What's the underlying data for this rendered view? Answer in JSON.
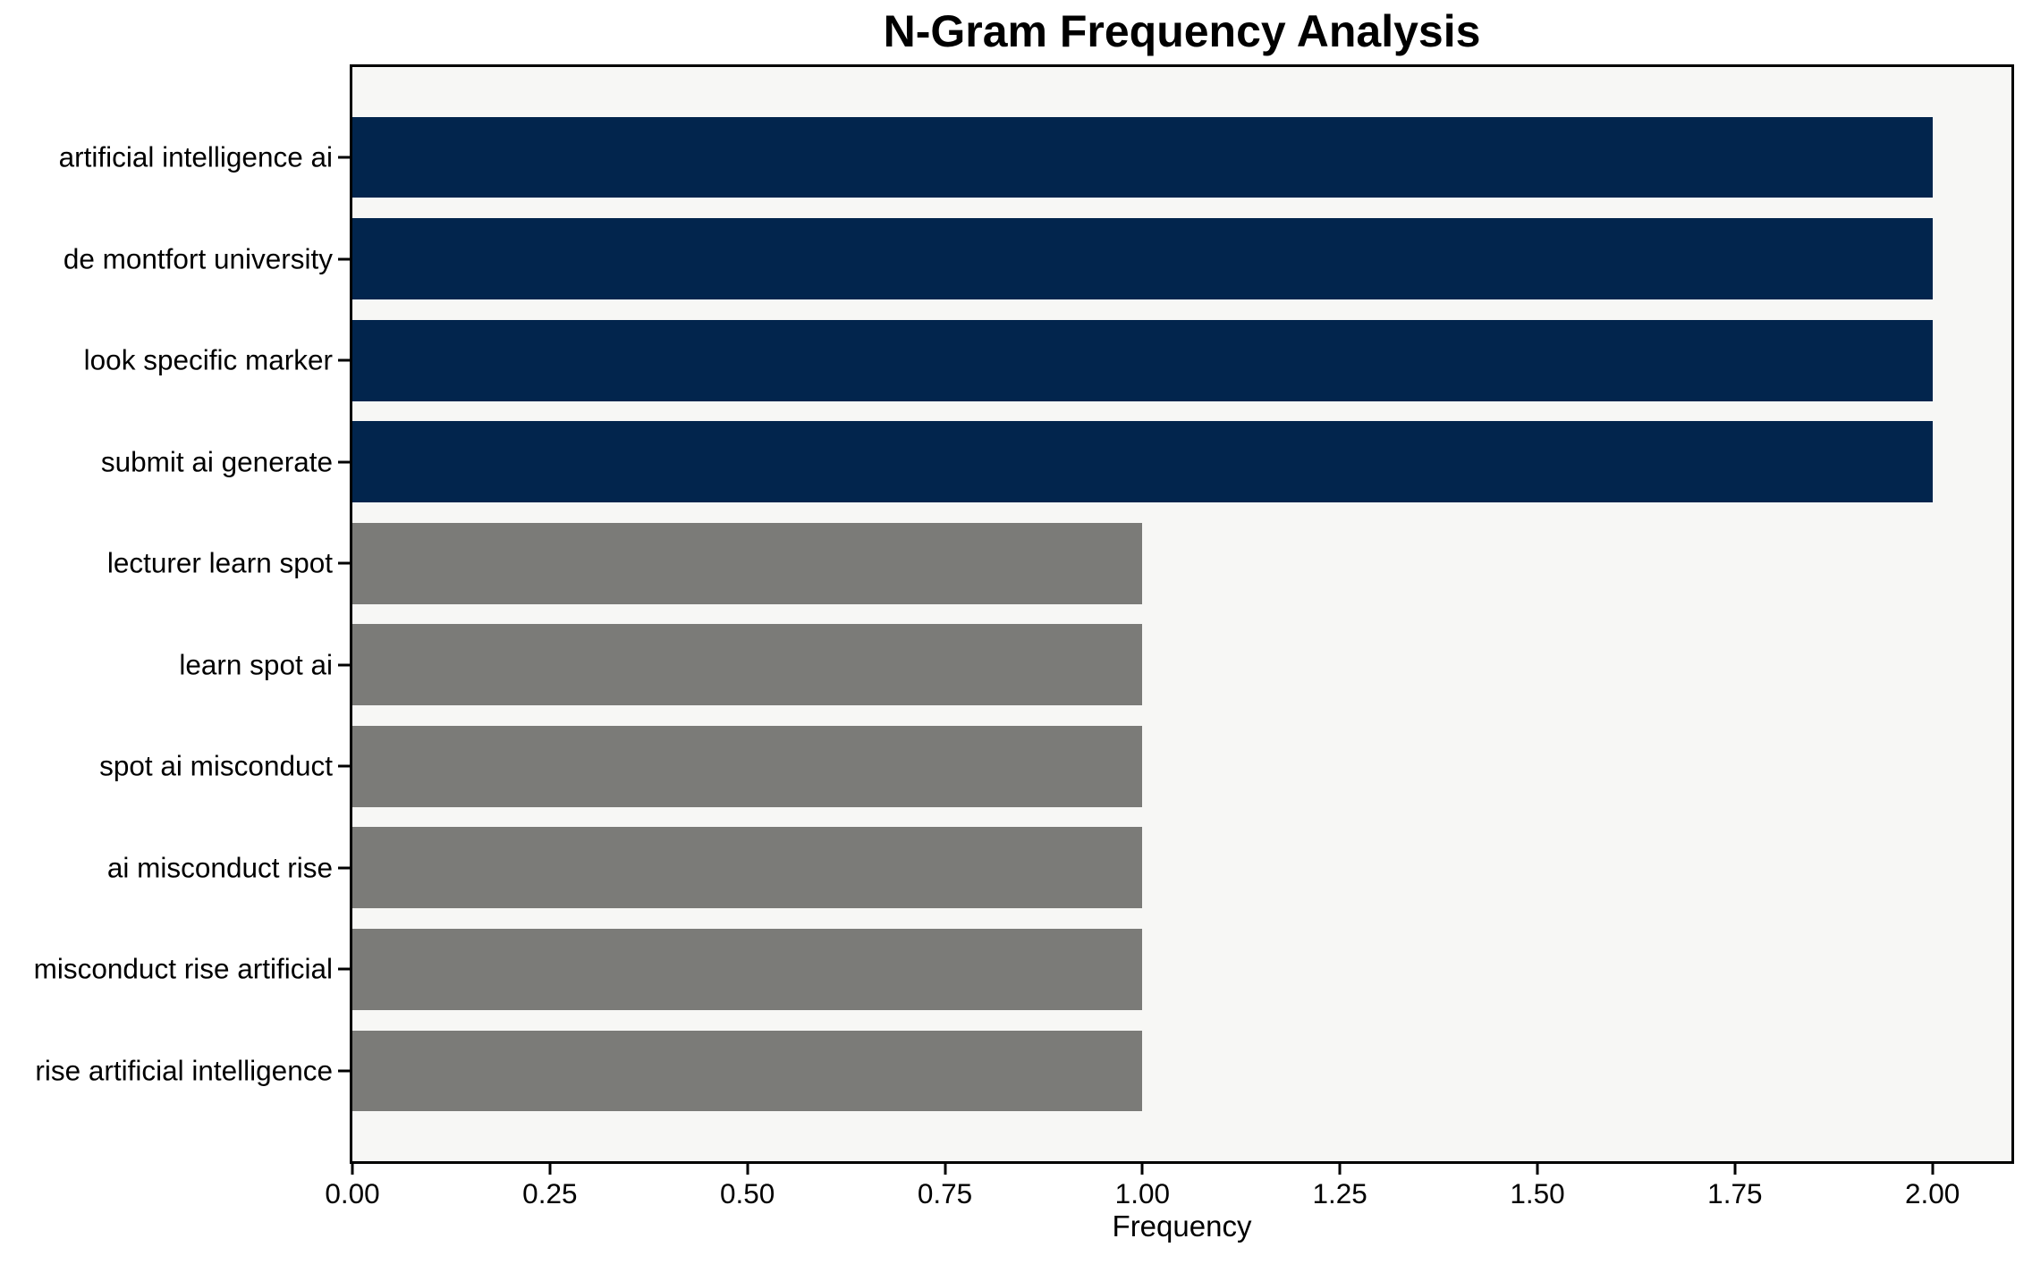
{
  "chart_data": {
    "type": "bar",
    "orientation": "horizontal",
    "title": "N-Gram Frequency Analysis",
    "xlabel": "Frequency",
    "ylabel": "",
    "categories": [
      "artificial intelligence ai",
      "de montfort university",
      "look specific marker",
      "submit ai generate",
      "lecturer learn spot",
      "learn spot ai",
      "spot ai misconduct",
      "ai misconduct rise",
      "misconduct rise artificial",
      "rise artificial intelligence"
    ],
    "values": [
      2,
      2,
      2,
      2,
      1,
      1,
      1,
      1,
      1,
      1
    ],
    "bar_colors": [
      "#02254d",
      "#02254d",
      "#02254d",
      "#02254d",
      "#7b7b78",
      "#7b7b78",
      "#7b7b78",
      "#7b7b78",
      "#7b7b78",
      "#7b7b78"
    ],
    "xlim": [
      0,
      2.1
    ],
    "xtick_values": [
      0,
      0.25,
      0.5,
      0.75,
      1.0,
      1.25,
      1.5,
      1.75,
      2.0
    ],
    "xtick_labels": [
      "0.00",
      "0.25",
      "0.50",
      "0.75",
      "1.00",
      "1.25",
      "1.50",
      "1.75",
      "2.00"
    ],
    "grid": false,
    "legend": "none",
    "colors": {
      "high_frequency_bar": "#02254d",
      "low_frequency_bar": "#7b7b78",
      "plot_background": "#f7f7f5",
      "figure_background": "#ffffff",
      "axis_frame": "#000000",
      "text": "#000000"
    }
  }
}
